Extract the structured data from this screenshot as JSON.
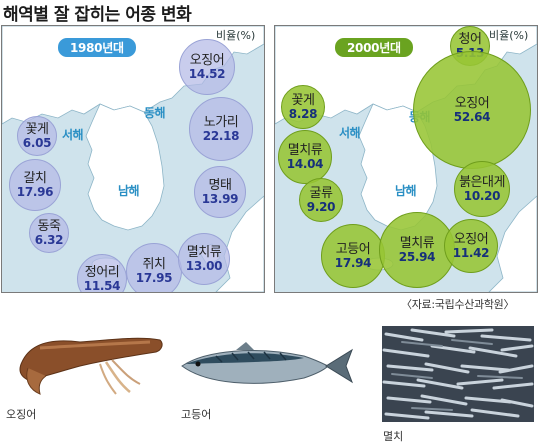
{
  "title": "해역별 잘 잡히는 어종 변화",
  "unit_label": "비율(%)",
  "seas": {
    "west": "서해",
    "east": "동해",
    "south": "남해"
  },
  "panel_1980": {
    "year_label": "1980년대",
    "badge_color": "#3a9ad9",
    "fish": [
      {
        "name": "오징어",
        "value": "14.52"
      },
      {
        "name": "노가리",
        "value": "22.18"
      },
      {
        "name": "명태",
        "value": "13.99"
      },
      {
        "name": "꽃게",
        "value": "6.05"
      },
      {
        "name": "갈치",
        "value": "17.96"
      },
      {
        "name": "동죽",
        "value": "6.32"
      },
      {
        "name": "정어리",
        "value": "11.54"
      },
      {
        "name": "쥐치",
        "value": "17.95"
      },
      {
        "name": "멸치류",
        "value": "13.00"
      }
    ]
  },
  "panel_2000": {
    "year_label": "2000년대",
    "badge_color": "#6aa320",
    "fish": [
      {
        "name": "청어",
        "value": "5.13"
      },
      {
        "name": "오징어",
        "value": "52.64"
      },
      {
        "name": "꽃게",
        "value": "8.28"
      },
      {
        "name": "멸치류",
        "value": "14.04"
      },
      {
        "name": "굴류",
        "value": "9.20"
      },
      {
        "name": "붉은대게",
        "value": "10.20"
      },
      {
        "name": "고등어",
        "value": "17.94"
      },
      {
        "name": "멸치류",
        "value": "25.94"
      },
      {
        "name": "오징어",
        "value": "11.42"
      }
    ]
  },
  "source": "〈자료:국립수산과학원〉",
  "photos": [
    {
      "label": "오징어"
    },
    {
      "label": "고등어"
    },
    {
      "label": "멸치"
    }
  ],
  "colors": {
    "sea": "#cfe3ec",
    "land": "#ffffff",
    "sea_text": "#2a8fc4"
  }
}
